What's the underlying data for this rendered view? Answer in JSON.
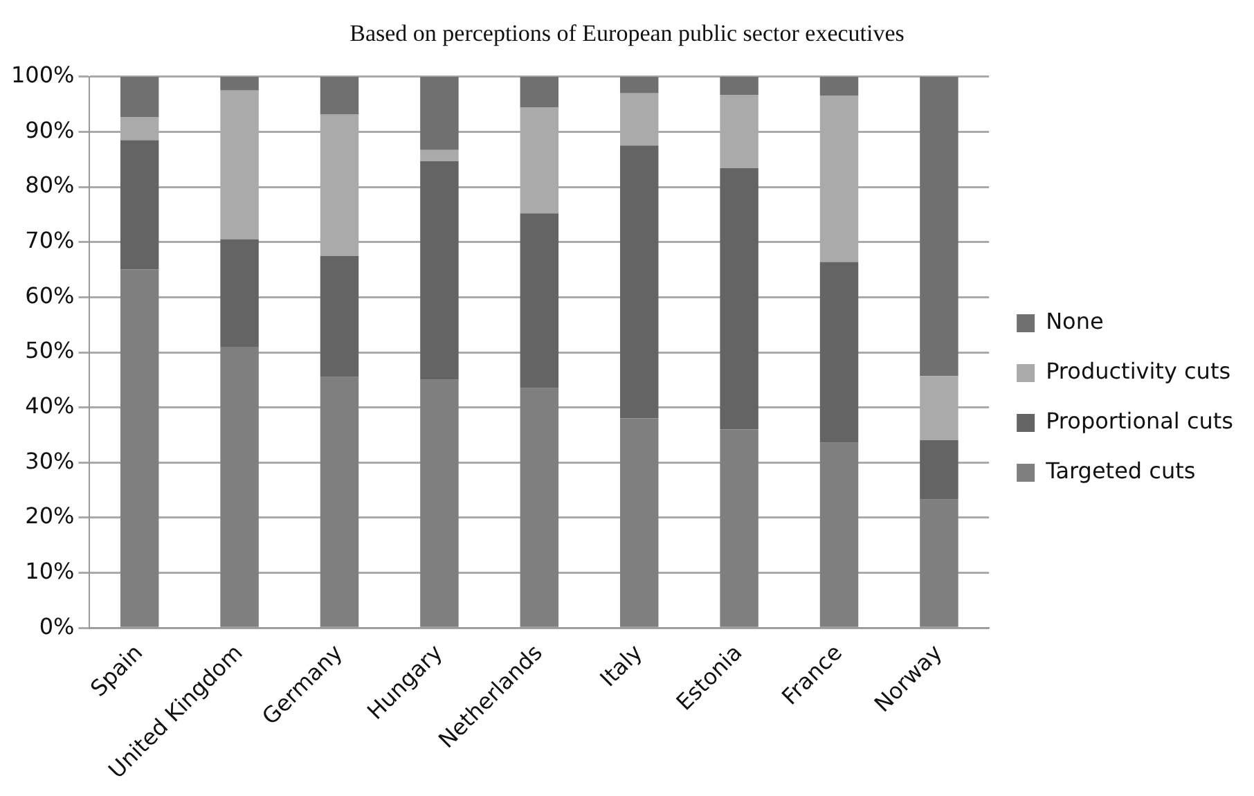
{
  "chart_data": {
    "type": "bar",
    "title": "Based on perceptions of European public sector executives",
    "stacked": true,
    "categories": [
      "Spain",
      "United Kingdom",
      "Germany",
      "Hungary",
      "Netherlands",
      "Italy",
      "Estonia",
      "France",
      "Norway"
    ],
    "series": [
      {
        "name": "Targeted cuts",
        "color": "#7f7f7f",
        "values": [
          65,
          51,
          45.5,
          45,
          43.5,
          38,
          36,
          33.6,
          23.3
        ]
      },
      {
        "name": "Proportional cuts",
        "color": "#646464",
        "values": [
          23.5,
          19.5,
          22,
          39.7,
          31.7,
          49.5,
          47.4,
          32.8,
          10.8
        ]
      },
      {
        "name": "Productivity cuts",
        "color": "#aaaaaa",
        "values": [
          4.2,
          27,
          25.7,
          2,
          19.2,
          9.5,
          13.3,
          30.2,
          11.6
        ]
      },
      {
        "name": "None",
        "color": "#707070",
        "values": [
          7.3,
          2.5,
          6.8,
          13.3,
          5.6,
          3,
          3.3,
          3.4,
          54.3
        ]
      }
    ],
    "ylim": [
      0,
      100
    ],
    "yticks": [
      {
        "value": 0,
        "label": "0%"
      },
      {
        "value": 10,
        "label": "10%"
      },
      {
        "value": 20,
        "label": "20%"
      },
      {
        "value": 30,
        "label": "30%"
      },
      {
        "value": 40,
        "label": "40%"
      },
      {
        "value": 50,
        "label": "50%"
      },
      {
        "value": 60,
        "label": "60%"
      },
      {
        "value": 70,
        "label": "70%"
      },
      {
        "value": 80,
        "label": "80%"
      },
      {
        "value": 90,
        "label": "90%"
      },
      {
        "value": 100,
        "label": "100%"
      }
    ],
    "grid": "y",
    "legend": "right"
  }
}
